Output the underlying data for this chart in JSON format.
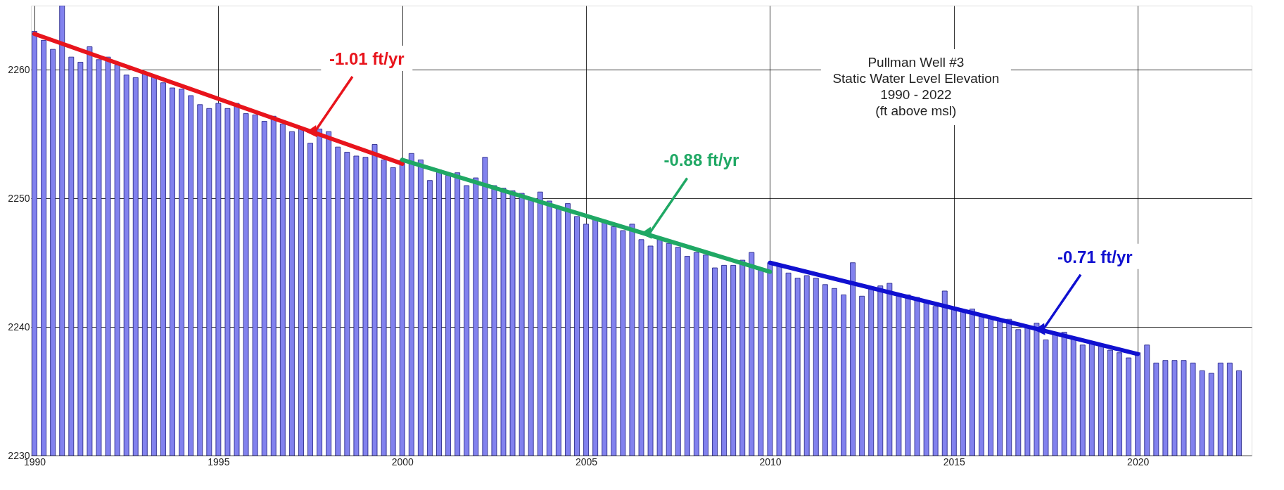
{
  "chart_data": {
    "type": "bar",
    "title": "Pullman Well #3\nStatic Water Level Elevation\n1990 - 2022\n(ft above msl)",
    "x": [
      1990.0,
      1990.25,
      1990.5,
      1990.75,
      1991.0,
      1991.25,
      1991.5,
      1991.75,
      1992.0,
      1992.25,
      1992.5,
      1992.75,
      1993.0,
      1993.25,
      1993.5,
      1993.75,
      1994.0,
      1994.25,
      1994.5,
      1994.75,
      1995.0,
      1995.25,
      1995.5,
      1995.75,
      1996.0,
      1996.25,
      1996.5,
      1996.75,
      1997.0,
      1997.25,
      1997.5,
      1997.75,
      1998.0,
      1998.25,
      1998.5,
      1998.75,
      1999.0,
      1999.25,
      1999.5,
      1999.75,
      2000.0,
      2000.25,
      2000.5,
      2000.75,
      2001.0,
      2001.25,
      2001.5,
      2001.75,
      2002.0,
      2002.25,
      2002.5,
      2002.75,
      2003.0,
      2003.25,
      2003.5,
      2003.75,
      2004.0,
      2004.25,
      2004.5,
      2004.75,
      2005.0,
      2005.25,
      2005.5,
      2005.75,
      2006.0,
      2006.25,
      2006.5,
      2006.75,
      2007.0,
      2007.25,
      2007.5,
      2007.75,
      2008.0,
      2008.25,
      2008.5,
      2008.75,
      2009.0,
      2009.25,
      2009.5,
      2009.75,
      2010.0,
      2010.25,
      2010.5,
      2010.75,
      2011.0,
      2011.25,
      2011.5,
      2011.75,
      2012.0,
      2012.25,
      2012.5,
      2012.75,
      2013.0,
      2013.25,
      2013.5,
      2013.75,
      2014.0,
      2014.25,
      2014.5,
      2014.75,
      2015.0,
      2015.25,
      2015.5,
      2015.75,
      2016.0,
      2016.25,
      2016.5,
      2016.75,
      2017.0,
      2017.25,
      2017.5,
      2017.75,
      2018.0,
      2018.25,
      2018.5,
      2018.75,
      2019.0,
      2019.25,
      2019.5,
      2019.75,
      2020.0,
      2020.25,
      2020.5,
      2020.75,
      2021.0,
      2021.25,
      2021.5,
      2021.75,
      2022.0,
      2022.25,
      2022.5,
      2022.75
    ],
    "series": [
      {
        "color": "#8282ee",
        "values": [
          2263.0,
          2262.3,
          2261.6,
          2265.0,
          2261.0,
          2260.6,
          2261.8,
          2260.8,
          2261.0,
          2260.4,
          2259.6,
          2259.4,
          2259.7,
          2259.5,
          2259.0,
          2258.6,
          2258.5,
          2258.0,
          2257.3,
          2257.0,
          2257.4,
          2257.0,
          2257.4,
          2256.6,
          2256.5,
          2256.0,
          2256.4,
          2255.8,
          2255.2,
          2255.5,
          2254.3,
          2255.4,
          2255.2,
          2254.0,
          2253.6,
          2253.3,
          2253.2,
          2254.2,
          2253.0,
          2252.4,
          2253.0,
          2253.5,
          2253.0,
          2251.4,
          2252.2,
          2251.8,
          2252.0,
          2251.0,
          2251.6,
          2253.2,
          2251.0,
          2250.8,
          2250.6,
          2250.4,
          2250.0,
          2250.5,
          2249.8,
          2249.2,
          2249.6,
          2248.6,
          2248.0,
          2248.5,
          2248.3,
          2247.8,
          2247.5,
          2248.0,
          2246.8,
          2246.3,
          2246.8,
          2246.5,
          2246.2,
          2245.5,
          2245.8,
          2245.6,
          2244.6,
          2244.8,
          2244.8,
          2245.2,
          2245.8,
          2244.5,
          2245.0,
          2244.8,
          2244.2,
          2243.8,
          2244.0,
          2243.8,
          2243.3,
          2243.0,
          2242.5,
          2245.0,
          2242.4,
          2243.0,
          2243.2,
          2243.4,
          2242.6,
          2242.5,
          2242.3,
          2242.0,
          2241.6,
          2242.8,
          2241.5,
          2241.2,
          2241.4,
          2240.8,
          2240.8,
          2240.5,
          2240.6,
          2239.8,
          2240.0,
          2240.3,
          2239.0,
          2239.6,
          2239.6,
          2239.2,
          2238.6,
          2238.8,
          2238.5,
          2238.2,
          2238.0,
          2237.6,
          2238.0,
          2238.6,
          2237.2,
          2237.4,
          2237.4,
          2237.4,
          2237.2,
          2236.6,
          2236.4,
          2237.2,
          2237.2,
          2236.6
        ]
      },
      {
        "type": "line",
        "color": "#e8141c",
        "x": [
          1990,
          2000
        ],
        "values": [
          2262.8,
          2252.7
        ]
      },
      {
        "type": "line",
        "color": "#1fa864",
        "x": [
          2000,
          2010
        ],
        "values": [
          2253.0,
          2244.3
        ]
      },
      {
        "type": "line",
        "color": "#1010d0",
        "x": [
          2010,
          2020
        ],
        "values": [
          2245.0,
          2237.9
        ]
      }
    ],
    "annotations": [
      {
        "text": "-1.01 ft/yr",
        "x": 1997.6,
        "y": 2255.1
      },
      {
        "text": "-0.88 ft/yr",
        "x": 2006.7,
        "y": 2247.2
      },
      {
        "text": "-0.71 ft/yr",
        "x": 2017.4,
        "y": 2239.7
      }
    ],
    "xlim": [
      1990,
      2023
    ],
    "xticks": [
      1990,
      1995,
      2000,
      2005,
      2010,
      2015,
      2020
    ],
    "ylim": [
      2230,
      2265
    ],
    "yticks": [
      2230,
      2240,
      2250,
      2260
    ],
    "grid": true
  }
}
